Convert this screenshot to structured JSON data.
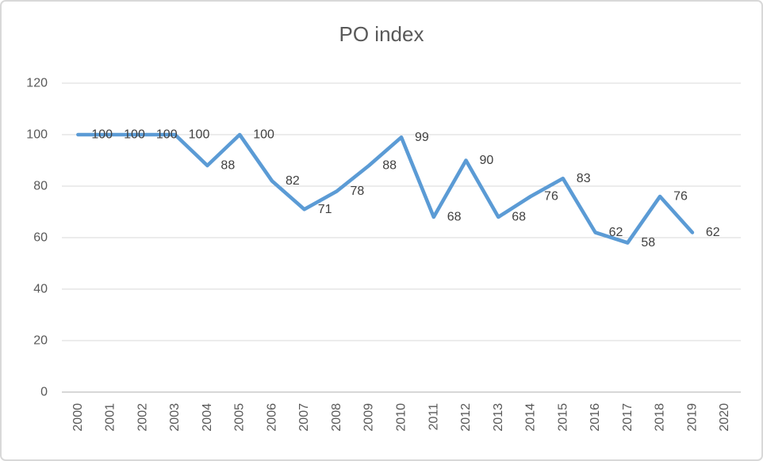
{
  "window": {
    "background": "#ffffff",
    "frame_border_color": "#d8d8d8"
  },
  "chart_data": {
    "type": "line",
    "title": "PO index",
    "categories": [
      "2000",
      "2001",
      "2002",
      "2003",
      "2004",
      "2005",
      "2006",
      "2007",
      "2008",
      "2009",
      "2010",
      "2011",
      "2012",
      "2013",
      "2014",
      "2015",
      "2016",
      "2017",
      "2018",
      "2019",
      "2020"
    ],
    "series": [
      {
        "name": "PO index",
        "values": [
          100,
          100,
          100,
          100,
          88,
          100,
          82,
          71,
          78,
          88,
          99,
          68,
          90,
          68,
          76,
          83,
          62,
          58,
          76,
          62,
          null
        ]
      }
    ],
    "data_labels": [
      100,
      100,
      100,
      100,
      88,
      100,
      82,
      71,
      78,
      88,
      99,
      68,
      90,
      68,
      76,
      83,
      62,
      58,
      76,
      62
    ],
    "yticks": [
      0,
      20,
      40,
      60,
      80,
      100,
      120
    ],
    "ylim": [
      0,
      120
    ],
    "xlabel": "",
    "ylabel": "",
    "grid": true,
    "legend_position": "none",
    "x_label_rotation": -90,
    "line_color": "#5b9bd5",
    "data_label_color": "#404040",
    "axis_text_color": "#595959",
    "title_color": "#595959",
    "gridline_color": "#d9d9d9",
    "axis_line_color": "#bfbfbf"
  }
}
